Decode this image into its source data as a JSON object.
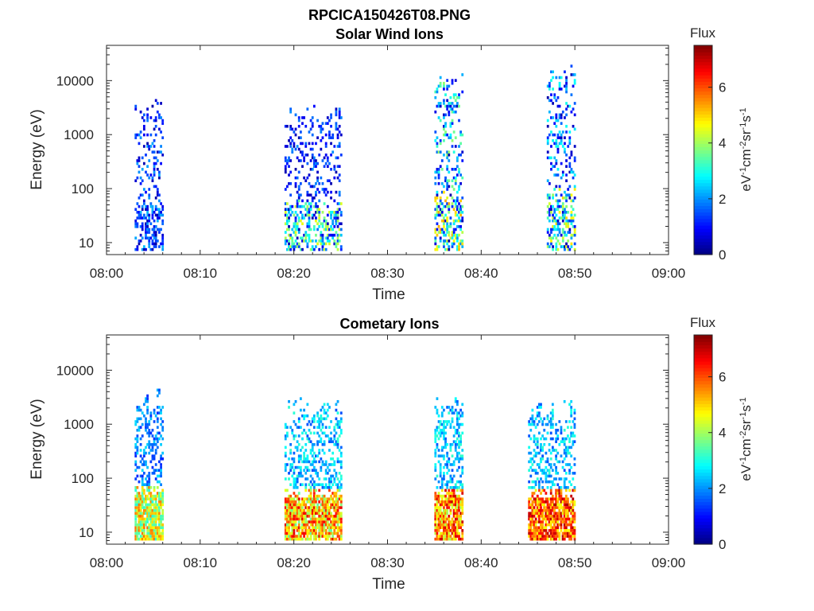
{
  "figure": {
    "title": "RPCICA150426T08.PNG"
  },
  "colors": {
    "axis": "#262626",
    "colormap": "jet"
  },
  "chart_data": [
    {
      "type": "heatmap",
      "title": "Solar Wind Ions",
      "xlabel": "Time",
      "ylabel": "Energy (eV)",
      "x_ticks": [
        "08:00",
        "08:10",
        "08:20",
        "08:30",
        "08:40",
        "08:50",
        "09:00"
      ],
      "xlim": [
        "08:00",
        "09:00"
      ],
      "y_scale": "log",
      "y_ticks": [
        "10",
        "100",
        "1000",
        "10000"
      ],
      "ylim": [
        6,
        45000
      ],
      "colorbar": {
        "label": "Flux",
        "units": "eV-1cm-2sr-1s-1",
        "range": [
          0,
          7.5
        ],
        "ticks": [
          "0",
          "2",
          "4",
          "6"
        ]
      },
      "bursts": [
        {
          "start": "08:03",
          "end": "08:06",
          "low_flux": [
            0.3,
            2.4
          ],
          "high_e_flux": [
            0.3,
            2.2
          ],
          "max_energy": 4500
        },
        {
          "start": "08:19",
          "end": "08:25",
          "low_flux": [
            0.3,
            4.6
          ],
          "high_e_flux": [
            0.3,
            2.0
          ],
          "max_energy": 3500
        },
        {
          "start": "08:35",
          "end": "08:38",
          "low_flux": [
            0.3,
            5.4
          ],
          "high_e_flux": [
            0.3,
            4.0
          ],
          "max_energy": 14000
        },
        {
          "start": "08:47",
          "end": "08:50",
          "low_flux": [
            0.3,
            5.0
          ],
          "high_e_flux": [
            0.3,
            3.0
          ],
          "max_energy": 19000
        }
      ]
    },
    {
      "type": "heatmap",
      "title": "Cometary Ions",
      "xlabel": "Time",
      "ylabel": "Energy (eV)",
      "x_ticks": [
        "08:00",
        "08:10",
        "08:20",
        "08:30",
        "08:40",
        "08:50",
        "09:00"
      ],
      "xlim": [
        "08:00",
        "09:00"
      ],
      "y_scale": "log",
      "y_ticks": [
        "10",
        "100",
        "1000",
        "10000"
      ],
      "ylim": [
        6,
        45000
      ],
      "colorbar": {
        "label": "Flux",
        "units": "eV-1cm-2sr-1s-1",
        "range": [
          0,
          7.5
        ],
        "ticks": [
          "0",
          "2",
          "4",
          "6"
        ]
      },
      "bursts": [
        {
          "start": "08:03",
          "end": "08:06",
          "low_flux": [
            3.0,
            5.8
          ],
          "high_e_flux": [
            1.2,
            2.6
          ],
          "max_energy": 4500
        },
        {
          "start": "08:19",
          "end": "08:25",
          "low_flux": [
            3.5,
            6.8
          ],
          "high_e_flux": [
            1.5,
            3.2
          ],
          "max_energy": 3000
        },
        {
          "start": "08:35",
          "end": "08:38",
          "low_flux": [
            4.0,
            7.0
          ],
          "high_e_flux": [
            1.5,
            3.2
          ],
          "max_energy": 3500
        },
        {
          "start": "08:45",
          "end": "08:50",
          "low_flux": [
            4.5,
            7.2
          ],
          "high_e_flux": [
            1.5,
            3.2
          ],
          "max_energy": 3000
        }
      ]
    }
  ]
}
